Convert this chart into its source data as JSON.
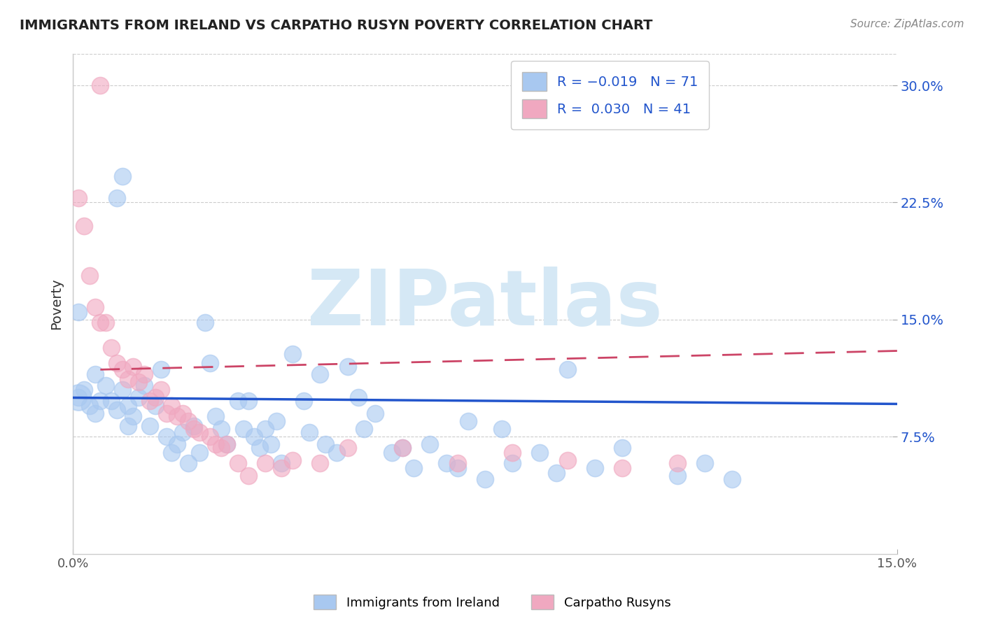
{
  "title": "IMMIGRANTS FROM IRELAND VS CARPATHO RUSYN POVERTY CORRELATION CHART",
  "source": "Source: ZipAtlas.com",
  "ylabel": "Poverty",
  "xlim": [
    0.0,
    0.15
  ],
  "ylim": [
    0.0,
    0.32
  ],
  "yticks": [
    0.075,
    0.15,
    0.225,
    0.3
  ],
  "ytick_labels": [
    "7.5%",
    "15.0%",
    "22.5%",
    "30.0%"
  ],
  "xtick_vals": [
    0.0,
    0.15
  ],
  "xtick_labels": [
    "0.0%",
    "15.0%"
  ],
  "color_blue": "#A8C8F0",
  "color_pink": "#F0A8C0",
  "color_blue_line": "#2255CC",
  "color_pink_line": "#CC4466",
  "watermark_text": "ZIPatlas",
  "watermark_color": "#D5E8F5",
  "blue_scatter": [
    [
      0.001,
      0.155
    ],
    [
      0.002,
      0.105
    ],
    [
      0.003,
      0.095
    ],
    [
      0.004,
      0.09
    ],
    [
      0.004,
      0.115
    ],
    [
      0.005,
      0.098
    ],
    [
      0.006,
      0.108
    ],
    [
      0.007,
      0.098
    ],
    [
      0.008,
      0.092
    ],
    [
      0.009,
      0.105
    ],
    [
      0.01,
      0.095
    ],
    [
      0.01,
      0.082
    ],
    [
      0.011,
      0.088
    ],
    [
      0.012,
      0.1
    ],
    [
      0.013,
      0.108
    ],
    [
      0.014,
      0.082
    ],
    [
      0.015,
      0.095
    ],
    [
      0.016,
      0.118
    ],
    [
      0.017,
      0.075
    ],
    [
      0.018,
      0.065
    ],
    [
      0.019,
      0.07
    ],
    [
      0.02,
      0.078
    ],
    [
      0.021,
      0.058
    ],
    [
      0.022,
      0.082
    ],
    [
      0.023,
      0.065
    ],
    [
      0.024,
      0.148
    ],
    [
      0.025,
      0.122
    ],
    [
      0.026,
      0.088
    ],
    [
      0.027,
      0.08
    ],
    [
      0.028,
      0.07
    ],
    [
      0.03,
      0.098
    ],
    [
      0.031,
      0.08
    ],
    [
      0.032,
      0.098
    ],
    [
      0.033,
      0.075
    ],
    [
      0.034,
      0.068
    ],
    [
      0.035,
      0.08
    ],
    [
      0.036,
      0.07
    ],
    [
      0.037,
      0.085
    ],
    [
      0.038,
      0.058
    ],
    [
      0.04,
      0.128
    ],
    [
      0.042,
      0.098
    ],
    [
      0.043,
      0.078
    ],
    [
      0.045,
      0.115
    ],
    [
      0.046,
      0.07
    ],
    [
      0.048,
      0.065
    ],
    [
      0.05,
      0.12
    ],
    [
      0.052,
      0.1
    ],
    [
      0.053,
      0.08
    ],
    [
      0.055,
      0.09
    ],
    [
      0.058,
      0.065
    ],
    [
      0.06,
      0.068
    ],
    [
      0.062,
      0.055
    ],
    [
      0.065,
      0.07
    ],
    [
      0.068,
      0.058
    ],
    [
      0.07,
      0.055
    ],
    [
      0.072,
      0.085
    ],
    [
      0.075,
      0.048
    ],
    [
      0.078,
      0.08
    ],
    [
      0.08,
      0.058
    ],
    [
      0.085,
      0.065
    ],
    [
      0.088,
      0.052
    ],
    [
      0.09,
      0.118
    ],
    [
      0.095,
      0.055
    ],
    [
      0.1,
      0.068
    ],
    [
      0.11,
      0.05
    ],
    [
      0.115,
      0.058
    ],
    [
      0.12,
      0.048
    ],
    [
      0.008,
      0.228
    ],
    [
      0.009,
      0.242
    ],
    [
      0.001,
      0.1
    ]
  ],
  "pink_scatter": [
    [
      0.001,
      0.228
    ],
    [
      0.002,
      0.21
    ],
    [
      0.003,
      0.178
    ],
    [
      0.004,
      0.158
    ],
    [
      0.005,
      0.148
    ],
    [
      0.006,
      0.148
    ],
    [
      0.007,
      0.132
    ],
    [
      0.008,
      0.122
    ],
    [
      0.009,
      0.118
    ],
    [
      0.01,
      0.112
    ],
    [
      0.011,
      0.12
    ],
    [
      0.012,
      0.11
    ],
    [
      0.013,
      0.115
    ],
    [
      0.014,
      0.098
    ],
    [
      0.015,
      0.1
    ],
    [
      0.016,
      0.105
    ],
    [
      0.017,
      0.09
    ],
    [
      0.018,
      0.095
    ],
    [
      0.019,
      0.088
    ],
    [
      0.02,
      0.09
    ],
    [
      0.021,
      0.085
    ],
    [
      0.022,
      0.08
    ],
    [
      0.023,
      0.078
    ],
    [
      0.025,
      0.075
    ],
    [
      0.026,
      0.07
    ],
    [
      0.027,
      0.068
    ],
    [
      0.028,
      0.07
    ],
    [
      0.03,
      0.058
    ],
    [
      0.032,
      0.05
    ],
    [
      0.035,
      0.058
    ],
    [
      0.038,
      0.055
    ],
    [
      0.04,
      0.06
    ],
    [
      0.045,
      0.058
    ],
    [
      0.05,
      0.068
    ],
    [
      0.06,
      0.068
    ],
    [
      0.07,
      0.058
    ],
    [
      0.08,
      0.065
    ],
    [
      0.09,
      0.06
    ],
    [
      0.1,
      0.055
    ],
    [
      0.11,
      0.058
    ],
    [
      0.005,
      0.3
    ]
  ],
  "blue_line_x": [
    0.0,
    0.15
  ],
  "blue_line_y": [
    0.1,
    0.096
  ],
  "pink_line_x": [
    0.005,
    0.15
  ],
  "pink_line_y": [
    0.118,
    0.13
  ]
}
